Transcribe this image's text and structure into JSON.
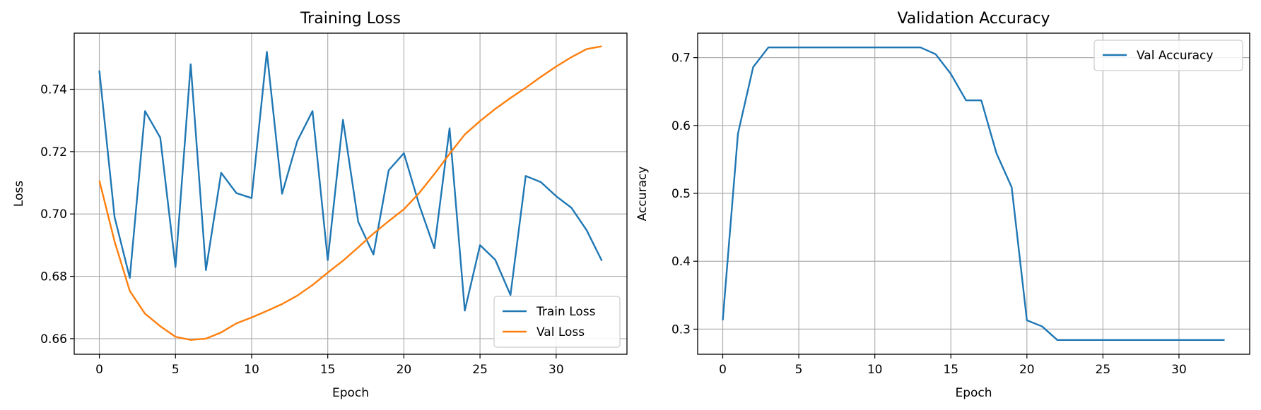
{
  "chart_data": [
    {
      "type": "line",
      "title": "Training Loss",
      "xlabel": "Epoch",
      "ylabel": "Loss",
      "xlim": [
        -1.65,
        34.65
      ],
      "ylim": [
        0.655,
        0.758
      ],
      "xticks": [
        0,
        5,
        10,
        15,
        20,
        25,
        30
      ],
      "yticks": [
        0.66,
        0.68,
        0.7,
        0.72,
        0.74
      ],
      "ytick_labels": [
        "0.66",
        "0.68",
        "0.70",
        "0.72",
        "0.74"
      ],
      "grid": true,
      "legend_position": "lower-right",
      "x": [
        0,
        1,
        2,
        3,
        4,
        5,
        6,
        7,
        8,
        9,
        10,
        11,
        12,
        13,
        14,
        15,
        16,
        17,
        18,
        19,
        20,
        21,
        22,
        23,
        24,
        25,
        26,
        27,
        28,
        29,
        30,
        31,
        32,
        33
      ],
      "series": [
        {
          "name": "Train Loss",
          "color": "#1f77b4",
          "values": [
            0.746,
            0.699,
            0.6795,
            0.733,
            0.7245,
            0.683,
            0.748,
            0.682,
            0.7132,
            0.7067,
            0.7051,
            0.752,
            0.7065,
            0.7234,
            0.733,
            0.6852,
            0.7302,
            0.6975,
            0.687,
            0.714,
            0.7195,
            0.703,
            0.689,
            0.7275,
            0.669,
            0.69,
            0.6853,
            0.674,
            0.7122,
            0.7102,
            0.7057,
            0.702,
            0.6948,
            0.685
          ]
        },
        {
          "name": "Val Loss",
          "color": "#ff7f0e",
          "values": [
            0.7107,
            0.6912,
            0.6753,
            0.668,
            0.664,
            0.6606,
            0.6596,
            0.66,
            0.662,
            0.6649,
            0.6668,
            0.6689,
            0.6711,
            0.6738,
            0.6772,
            0.6812,
            0.685,
            0.6893,
            0.6937,
            0.6977,
            0.7015,
            0.7067,
            0.7128,
            0.7193,
            0.7255,
            0.7298,
            0.7337,
            0.7372,
            0.7405,
            0.744,
            0.7473,
            0.7503,
            0.7529,
            0.7538
          ]
        }
      ]
    },
    {
      "type": "line",
      "title": "Validation Accuracy",
      "xlabel": "Epoch",
      "ylabel": "Accuracy",
      "xlim": [
        -1.65,
        34.65
      ],
      "ylim": [
        0.263,
        0.736
      ],
      "xticks": [
        0,
        5,
        10,
        15,
        20,
        25,
        30
      ],
      "yticks": [
        0.3,
        0.4,
        0.5,
        0.6,
        0.7
      ],
      "ytick_labels": [
        "0.3",
        "0.4",
        "0.5",
        "0.6",
        "0.7"
      ],
      "grid": true,
      "legend_position": "upper-right",
      "x": [
        0,
        1,
        2,
        3,
        4,
        5,
        6,
        7,
        8,
        9,
        10,
        11,
        12,
        13,
        14,
        15,
        16,
        17,
        18,
        19,
        20,
        21,
        22,
        23,
        24,
        25,
        26,
        27,
        28,
        29,
        30,
        31,
        32,
        33
      ],
      "series": [
        {
          "name": "Val Accuracy",
          "color": "#1f77b4",
          "values": [
            0.313,
            0.588,
            0.686,
            0.715,
            0.715,
            0.715,
            0.715,
            0.715,
            0.715,
            0.715,
            0.715,
            0.715,
            0.715,
            0.715,
            0.705,
            0.676,
            0.637,
            0.637,
            0.559,
            0.509,
            0.313,
            0.304,
            0.284,
            0.284,
            0.284,
            0.284,
            0.284,
            0.284,
            0.284,
            0.284,
            0.284,
            0.284,
            0.284,
            0.284
          ]
        }
      ]
    }
  ]
}
